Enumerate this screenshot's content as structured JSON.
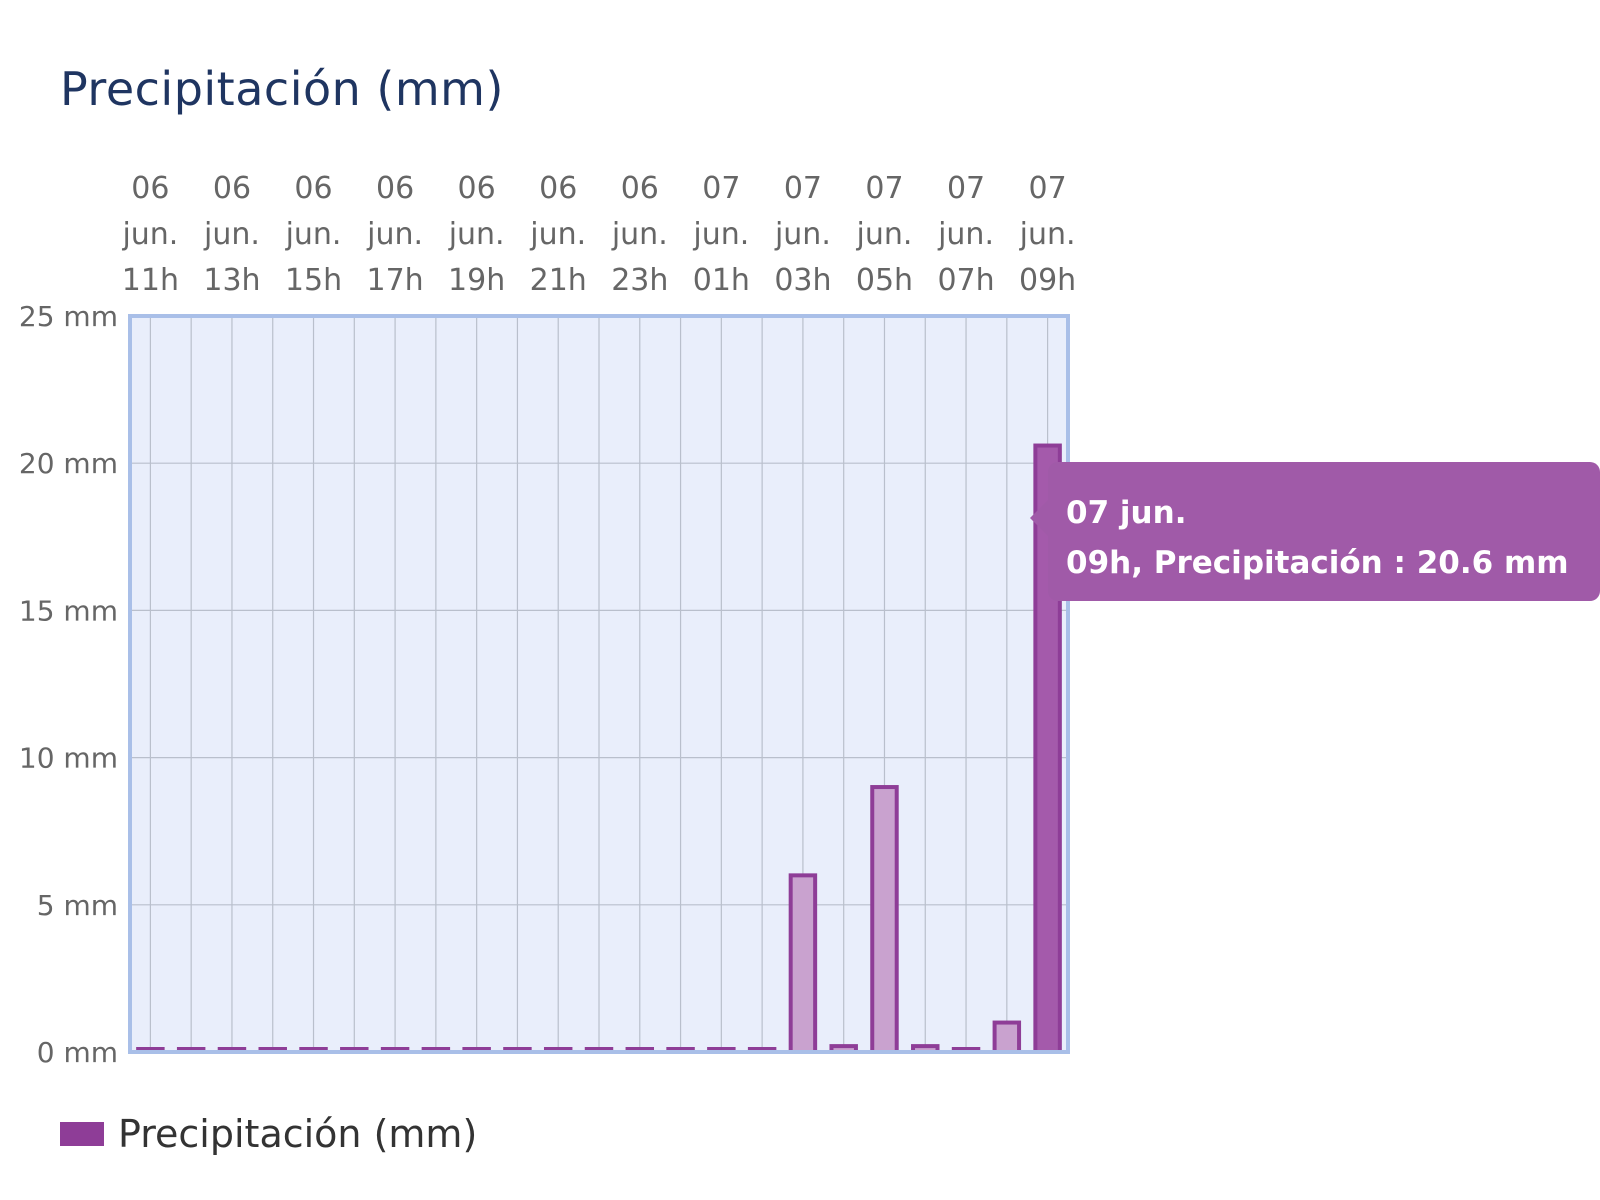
{
  "title": "Precipitación (mm)",
  "tooltip": {
    "line1": "07 jun.",
    "line2": "09h, Precipitación : 20.6 mm"
  },
  "legend": {
    "label": "Precipitación (mm)"
  },
  "colors": {
    "bar_stroke": "#8e3d97",
    "bar_fill_light": "#c9a2cf",
    "bar_fill_highlight": "#a45aab",
    "plot_background": "#e9eefb",
    "plot_border": "#a9bfe8",
    "grid": "#b9bfcc",
    "accent_text": "#1f3561"
  },
  "chart_data": {
    "type": "bar",
    "title": "Precipitación (mm)",
    "xlabel": "",
    "ylabel": "",
    "ylim": [
      0,
      25
    ],
    "grid": true,
    "legend_position": "bottom-left",
    "x_tick_labels": [
      [
        "06",
        "jun.",
        "11h"
      ],
      [
        "06",
        "jun.",
        "13h"
      ],
      [
        "06",
        "jun.",
        "15h"
      ],
      [
        "06",
        "jun.",
        "17h"
      ],
      [
        "06",
        "jun.",
        "19h"
      ],
      [
        "06",
        "jun.",
        "21h"
      ],
      [
        "06",
        "jun.",
        "23h"
      ],
      [
        "07",
        "jun.",
        "01h"
      ],
      [
        "07",
        "jun.",
        "03h"
      ],
      [
        "07",
        "jun.",
        "05h"
      ],
      [
        "07",
        "jun.",
        "07h"
      ],
      [
        "07",
        "jun.",
        "09h"
      ]
    ],
    "y_tick_labels": [
      "0 mm",
      "5 mm",
      "10 mm",
      "15 mm",
      "20 mm",
      "25 mm"
    ],
    "y_ticks": [
      0,
      5,
      10,
      15,
      20,
      25
    ],
    "categories": [
      "06 jun. 11h",
      "06 jun. 12h",
      "06 jun. 13h",
      "06 jun. 14h",
      "06 jun. 15h",
      "06 jun. 16h",
      "06 jun. 17h",
      "06 jun. 18h",
      "06 jun. 19h",
      "06 jun. 20h",
      "06 jun. 21h",
      "06 jun. 22h",
      "06 jun. 23h",
      "07 jun. 00h",
      "07 jun. 01h",
      "07 jun. 02h",
      "07 jun. 03h",
      "07 jun. 04h",
      "07 jun. 05h",
      "07 jun. 06h",
      "07 jun. 07h",
      "07 jun. 08h",
      "07 jun. 09h"
    ],
    "series": [
      {
        "name": "Precipitación (mm)",
        "values": [
          0,
          0,
          0,
          0,
          0,
          0,
          0,
          0,
          0,
          0,
          0,
          0,
          0,
          0,
          0,
          0,
          6.0,
          0.2,
          9.0,
          0.2,
          0,
          1.0,
          20.6
        ]
      }
    ],
    "highlighted_index": 22
  }
}
